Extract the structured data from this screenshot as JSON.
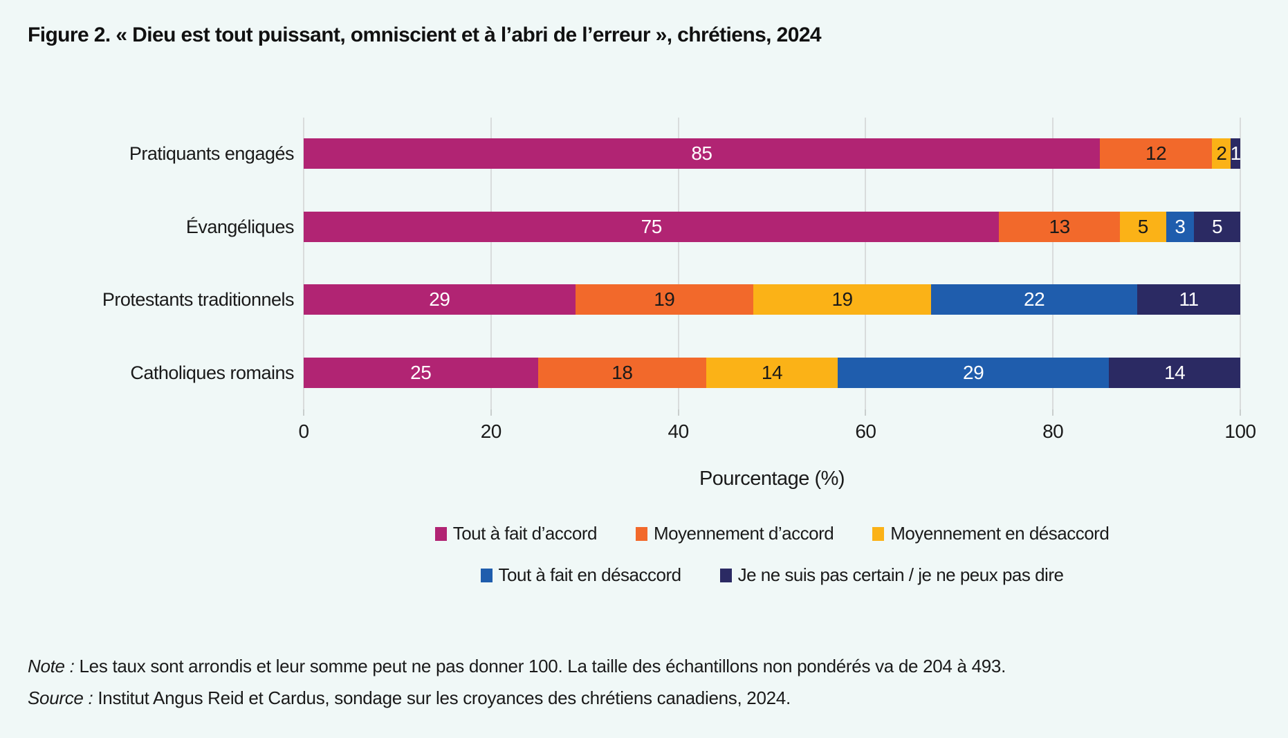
{
  "page": {
    "background": "#f0f8f7",
    "gridline_color": "#d9dcdc"
  },
  "title": "Figure 2. « Dieu est tout puissant, omniscient et à l’abri de l’erreur », chrétiens, 2024",
  "chart_data": {
    "type": "bar",
    "orientation": "horizontal",
    "stacked": true,
    "grid": true,
    "categories": [
      "Pratiquants engagés",
      "Évangéliques",
      "Protestants traditionnels",
      "Catholiques romains"
    ],
    "series": [
      {
        "name": "Tout à fait d’accord",
        "color": "#B12473",
        "label_color": "#ffffff",
        "values": [
          85,
          75,
          29,
          25
        ]
      },
      {
        "name": "Moyennement d’accord",
        "color": "#F2692B",
        "label_color": "#1a1a1a",
        "values": [
          12,
          13,
          19,
          18
        ]
      },
      {
        "name": "Moyennement en désaccord",
        "color": "#FBB217",
        "label_color": "#1a1a1a",
        "values": [
          2,
          5,
          19,
          14
        ]
      },
      {
        "name": "Tout à fait en désaccord",
        "color": "#1F5DAD",
        "label_color": "#ffffff",
        "values": [
          0,
          3,
          22,
          29
        ]
      },
      {
        "name": "Je ne suis pas certain / je ne peux pas dire",
        "color": "#2B2A63",
        "label_color": "#ffffff",
        "values": [
          1,
          5,
          11,
          14
        ]
      }
    ],
    "xlabel": "Pourcentage (%)",
    "x_ticks": [
      0,
      20,
      40,
      60,
      80,
      100
    ],
    "xlim": [
      0,
      100
    ],
    "legend_position": "bottom",
    "legend_rows": [
      [
        0,
        1,
        2
      ],
      [
        3,
        4
      ]
    ]
  },
  "note": {
    "prefix": "Note :",
    "text": " Les taux sont arrondis et leur somme peut ne pas donner 100. La taille des échantillons non pondérés va de 204 à 493."
  },
  "source": {
    "prefix": "Source :",
    "text": " Institut Angus Reid et Cardus, sondage sur les croyances des chrétiens canadiens, 2024."
  }
}
